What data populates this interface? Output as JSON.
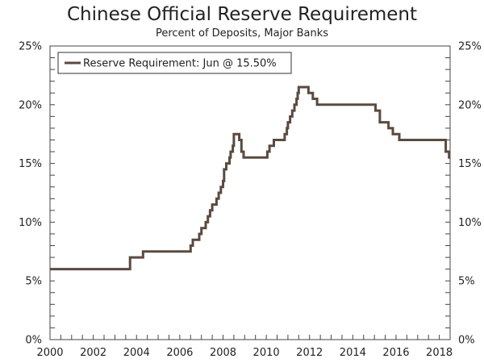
{
  "chart_data": {
    "type": "line",
    "title": "Chinese Official Reserve Requirement",
    "subtitle": "Percent of Deposits, Major Banks",
    "xlabel": "",
    "ylabel": "",
    "xlim": [
      2000,
      2018.5
    ],
    "ylim": [
      0,
      25
    ],
    "x_ticks": [
      "2000",
      "2002",
      "2004",
      "2006",
      "2008",
      "2010",
      "2012",
      "2014",
      "2016",
      "2018"
    ],
    "y_ticks_left": [
      "0%",
      "5%",
      "10%",
      "15%",
      "20%",
      "25%"
    ],
    "y_ticks_right": [
      "0%",
      "5%",
      "10%",
      "15%",
      "20%",
      "25%"
    ],
    "legend": {
      "position": "top-left",
      "label": "Reserve Requirement: Jun @ 15.50%"
    },
    "grid": false,
    "series": [
      {
        "name": "Reserve Requirement: Jun @ 15.50%",
        "color": "#5a4a3f",
        "step": true,
        "points": [
          [
            2000.0,
            6.0
          ],
          [
            2003.7,
            7.0
          ],
          [
            2004.3,
            7.5
          ],
          [
            2006.5,
            8.0
          ],
          [
            2006.6,
            8.5
          ],
          [
            2006.9,
            9.0
          ],
          [
            2007.0,
            9.5
          ],
          [
            2007.2,
            10.0
          ],
          [
            2007.3,
            10.5
          ],
          [
            2007.4,
            11.0
          ],
          [
            2007.5,
            11.5
          ],
          [
            2007.7,
            12.0
          ],
          [
            2007.8,
            12.5
          ],
          [
            2007.9,
            13.0
          ],
          [
            2008.0,
            13.5
          ],
          [
            2008.05,
            14.5
          ],
          [
            2008.15,
            15.0
          ],
          [
            2008.3,
            15.5
          ],
          [
            2008.35,
            16.0
          ],
          [
            2008.45,
            16.5
          ],
          [
            2008.5,
            17.5
          ],
          [
            2008.75,
            17.0
          ],
          [
            2008.85,
            16.0
          ],
          [
            2008.95,
            15.5
          ],
          [
            2010.05,
            16.0
          ],
          [
            2010.15,
            16.5
          ],
          [
            2010.35,
            17.0
          ],
          [
            2010.85,
            17.5
          ],
          [
            2010.95,
            18.0
          ],
          [
            2011.0,
            18.5
          ],
          [
            2011.1,
            19.0
          ],
          [
            2011.2,
            19.5
          ],
          [
            2011.3,
            20.0
          ],
          [
            2011.4,
            20.5
          ],
          [
            2011.45,
            21.0
          ],
          [
            2011.5,
            21.5
          ],
          [
            2011.95,
            21.0
          ],
          [
            2012.15,
            20.5
          ],
          [
            2012.35,
            20.0
          ],
          [
            2015.05,
            19.5
          ],
          [
            2015.25,
            18.5
          ],
          [
            2015.65,
            18.0
          ],
          [
            2015.85,
            17.5
          ],
          [
            2016.15,
            17.0
          ],
          [
            2018.3,
            16.0
          ],
          [
            2018.45,
            15.5
          ],
          [
            2018.5,
            15.5
          ]
        ]
      }
    ]
  }
}
